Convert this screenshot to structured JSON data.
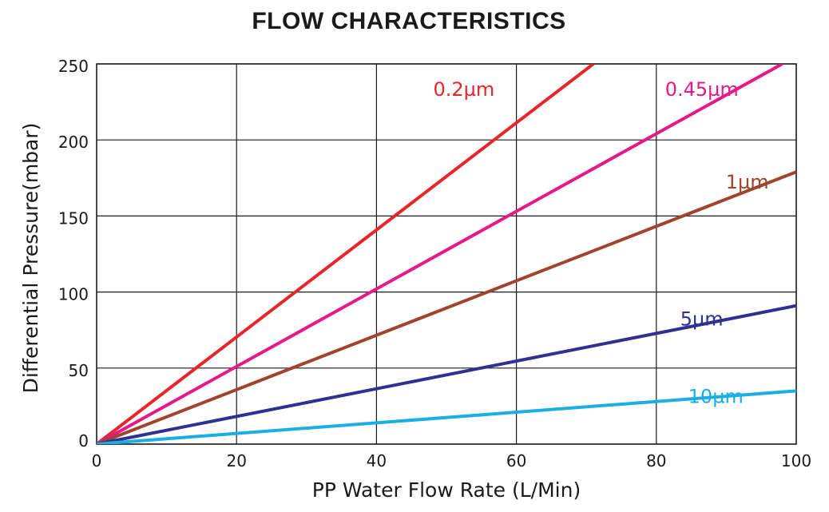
{
  "chart_data": {
    "type": "line",
    "title": "FLOW CHARACTERISTICS",
    "xlabel": "PP Water Flow Rate (L/Min)",
    "ylabel": "Differential Pressure(mbar)",
    "xlim": [
      0,
      100
    ],
    "ylim": [
      0,
      250
    ],
    "xticks": [
      0,
      20,
      40,
      60,
      80,
      100
    ],
    "yticks": [
      0,
      50,
      100,
      150,
      200,
      250
    ],
    "grid": true,
    "series": [
      {
        "name": "0.2µm",
        "label": "0.2µm",
        "color": "#e8262a",
        "x": [
          0,
          71
        ],
        "y": [
          0,
          250
        ]
      },
      {
        "name": "0.45µm",
        "label": "0.45µm",
        "color": "#e5198a",
        "x": [
          0,
          98
        ],
        "y": [
          0,
          250
        ]
      },
      {
        "name": "1µm",
        "label": "1µm",
        "color": "#a0442c",
        "x": [
          0,
          100
        ],
        "y": [
          0,
          179
        ]
      },
      {
        "name": "5µm",
        "label": "5µm",
        "color": "#2e3192",
        "x": [
          0,
          100
        ],
        "y": [
          0,
          91
        ]
      },
      {
        "name": "10µm",
        "label": "10µm",
        "color": "#1aaee5",
        "x": [
          0,
          100
        ],
        "y": [
          0,
          35
        ]
      }
    ]
  }
}
